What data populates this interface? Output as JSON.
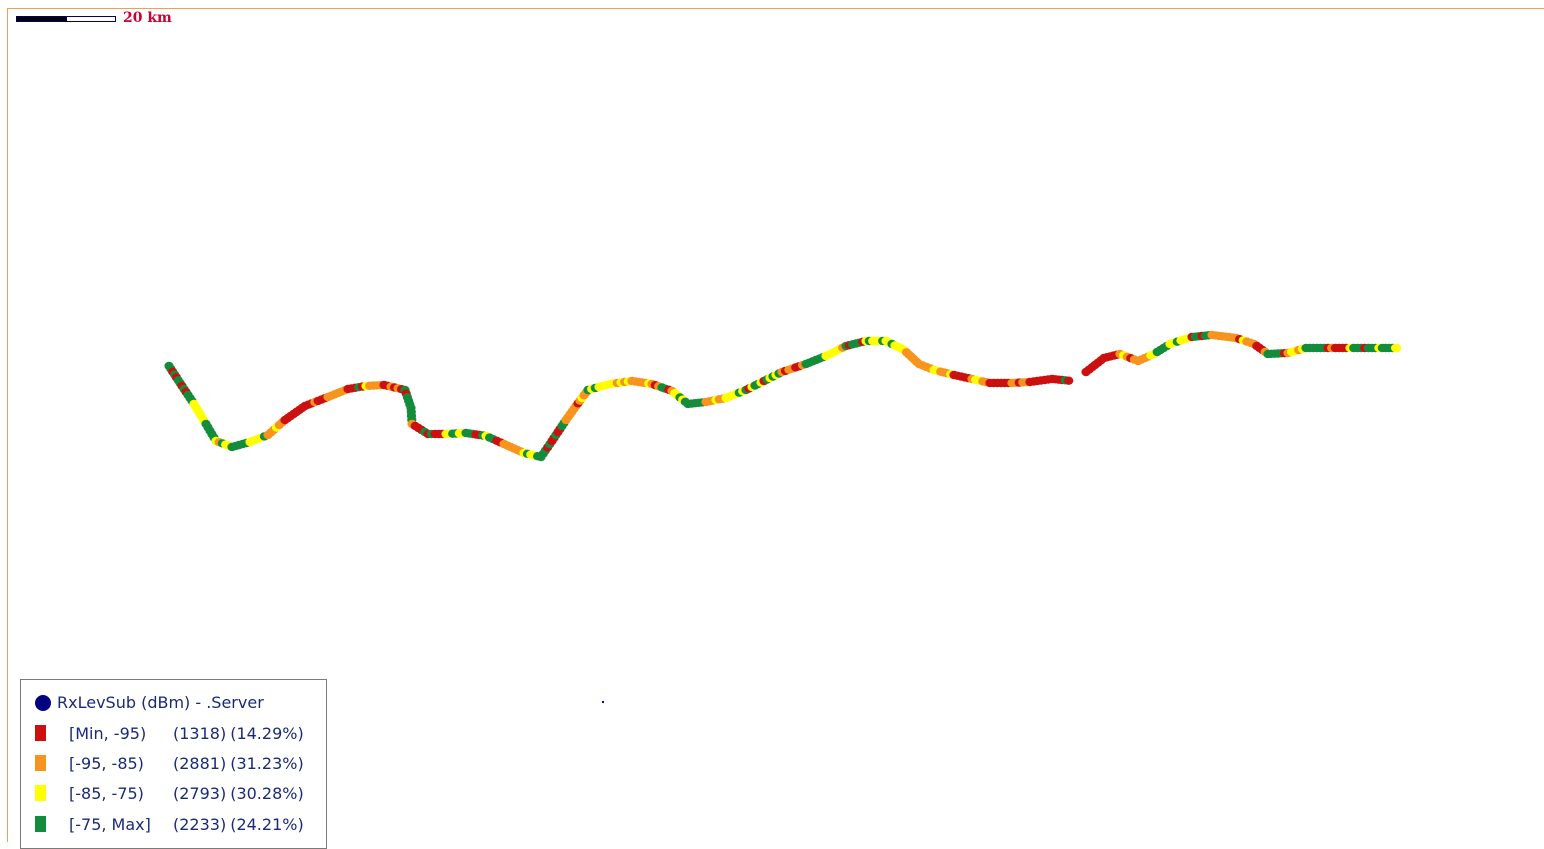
{
  "scale_bar": {
    "label": "20 km"
  },
  "legend": {
    "title": "RxLevSub (dBm) - .Server",
    "title_color": "#000080",
    "items": [
      {
        "range": "[Min, -95)",
        "count": "(1318)",
        "percent": "(14.29%)",
        "color": "#cc1010"
      },
      {
        "range": "[-95, -85)",
        "count": "(2881)",
        "percent": "(31.23%)",
        "color": "#f7941d"
      },
      {
        "range": "[-85, -75)",
        "count": "(2793)",
        "percent": "(30.28%)",
        "color": "#ffff00"
      },
      {
        "range": "[-75, Max]",
        "count": "(2233)",
        "percent": "(24.21%)",
        "color": "#138c3c"
      }
    ]
  }
}
